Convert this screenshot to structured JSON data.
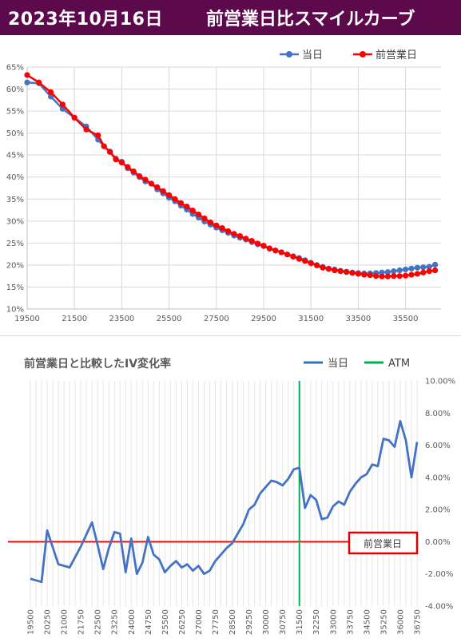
{
  "header": {
    "title": "2023年10月16日",
    "subtitle": "前営業日比スマイルカーブ"
  },
  "colors": {
    "header_bg": "#5c0a4c",
    "today": "#4472c4",
    "prev_day": "#ff0000",
    "atm": "#00b050",
    "change_line": "#4472c4",
    "zero_line": "#ff0000"
  },
  "chart_data": [
    {
      "type": "line",
      "title": "",
      "legend": [
        "当日",
        "前営業日"
      ],
      "legend_position": "top-right",
      "xlabel": "",
      "ylabel": "",
      "xlim": [
        19500,
        37000
      ],
      "ylim": [
        10,
        65
      ],
      "x_ticks": [
        "19500",
        "21500",
        "23500",
        "25500",
        "27500",
        "29500",
        "31500",
        "33500",
        "35500"
      ],
      "y_ticks": [
        "10%",
        "15%",
        "20%",
        "25%",
        "30%",
        "35%",
        "40%",
        "45%",
        "50%",
        "55%",
        "60%",
        "65%"
      ],
      "grid": true,
      "x": [
        19500,
        20000,
        20500,
        21000,
        21500,
        22000,
        22500,
        22750,
        23000,
        23250,
        23500,
        23750,
        24000,
        24250,
        24500,
        24750,
        25000,
        25250,
        25500,
        25750,
        26000,
        26250,
        26500,
        26750,
        27000,
        27250,
        27500,
        27750,
        28000,
        28250,
        28500,
        28750,
        29000,
        29250,
        29500,
        29750,
        30000,
        30250,
        30500,
        30750,
        31000,
        31250,
        31500,
        31750,
        32000,
        32250,
        32500,
        32750,
        33000,
        33250,
        33500,
        33750,
        34000,
        34250,
        34500,
        34750,
        35000,
        35250,
        35500,
        35750,
        36000,
        36250,
        36500,
        36750
      ],
      "series": [
        {
          "name": "当日",
          "values": [
            61.5,
            61.3,
            58.3,
            55.5,
            53.5,
            51.5,
            48.5,
            47.0,
            45.8,
            44.2,
            43.5,
            42.0,
            41.0,
            40.0,
            39.0,
            38.5,
            37.2,
            36.3,
            35.3,
            34.5,
            33.5,
            32.6,
            31.6,
            30.8,
            29.9,
            29.2,
            28.5,
            27.9,
            27.3,
            26.7,
            26.2,
            25.8,
            25.2,
            24.7,
            24.3,
            23.7,
            23.3,
            22.9,
            22.4,
            22.0,
            21.6,
            21.1,
            20.5,
            20.0,
            19.6,
            19.2,
            19.0,
            18.7,
            18.5,
            18.3,
            18.2,
            18.1,
            18.1,
            18.2,
            18.3,
            18.4,
            18.6,
            18.8,
            19.0,
            19.2,
            19.4,
            19.5,
            19.6,
            20.1
          ]
        },
        {
          "name": "前営業日",
          "values": [
            63.2,
            61.5,
            59.3,
            56.5,
            53.5,
            50.8,
            49.5,
            47.0,
            45.7,
            44.0,
            43.3,
            42.3,
            41.3,
            40.2,
            39.4,
            38.5,
            37.7,
            36.8,
            35.9,
            35.0,
            34.1,
            33.3,
            32.4,
            31.5,
            30.6,
            29.7,
            29.0,
            28.4,
            27.7,
            27.1,
            26.6,
            26.0,
            25.5,
            24.9,
            24.4,
            23.8,
            23.3,
            22.9,
            22.4,
            21.9,
            21.4,
            20.9,
            20.4,
            19.9,
            19.4,
            19.1,
            18.8,
            18.6,
            18.4,
            18.2,
            18.0,
            17.8,
            17.7,
            17.5,
            17.4,
            17.4,
            17.5,
            17.5,
            17.6,
            17.8,
            18.0,
            18.3,
            18.6,
            18.8
          ]
        }
      ]
    },
    {
      "type": "line",
      "title": "前営業日と比較したIV変化率",
      "legend": [
        "当日",
        "ATM"
      ],
      "legend_position": "top-right",
      "xlabel": "",
      "ylabel": "",
      "ylim": [
        -4,
        10
      ],
      "y_ticks": [
        "-4.00%",
        "-2.00%",
        "0.00%",
        "2.00%",
        "4.00%",
        "6.00%",
        "8.00%",
        "10.00%"
      ],
      "x_ticks": [
        "19500",
        "20250",
        "21000",
        "21750",
        "22500",
        "23250",
        "24000",
        "24750",
        "25500",
        "26250",
        "27000",
        "27750",
        "28500",
        "29250",
        "30000",
        "30750",
        "31500",
        "32250",
        "33000",
        "33750",
        "34500",
        "35250",
        "36000",
        "36750"
      ],
      "x": [
        19500,
        20000,
        20250,
        20750,
        21250,
        21750,
        22250,
        22500,
        22750,
        23000,
        23250,
        23500,
        23750,
        24000,
        24250,
        24500,
        24750,
        25000,
        25250,
        25500,
        25750,
        26000,
        26250,
        26500,
        26750,
        27000,
        27250,
        27500,
        27750,
        28000,
        28250,
        28500,
        28750,
        29000,
        29250,
        29500,
        29750,
        30000,
        30250,
        30500,
        30750,
        31000,
        31250,
        31500,
        31750,
        32000,
        32250,
        32500,
        32750,
        33000,
        33250,
        33500,
        33750,
        34000,
        34250,
        34500,
        34750,
        35000,
        35250,
        35500,
        35750,
        36000,
        36250,
        36500,
        36750
      ],
      "series": [
        {
          "name": "当日",
          "values": [
            -2.3,
            -2.5,
            0.7,
            -1.4,
            -1.6,
            -0.3,
            1.2,
            -0.2,
            -1.7,
            -0.4,
            0.6,
            0.5,
            -1.9,
            0.2,
            -2.0,
            -1.3,
            0.3,
            -0.8,
            -1.1,
            -1.9,
            -1.5,
            -1.2,
            -1.6,
            -1.4,
            -1.8,
            -1.5,
            -2.0,
            -1.8,
            -1.2,
            -0.8,
            -0.4,
            -0.1,
            0.5,
            1.1,
            2.0,
            2.3,
            3.0,
            3.4,
            3.8,
            3.7,
            3.5,
            3.9,
            4.5,
            4.6,
            2.1,
            2.9,
            2.6,
            1.4,
            1.5,
            2.2,
            2.5,
            2.3,
            3.1,
            3.6,
            4.0,
            4.2,
            4.8,
            4.7,
            6.4,
            6.3,
            5.9,
            7.5,
            6.3,
            4.0,
            6.2
          ]
        }
      ],
      "atm_strike": 31500,
      "zero_label": "前営業日"
    }
  ]
}
